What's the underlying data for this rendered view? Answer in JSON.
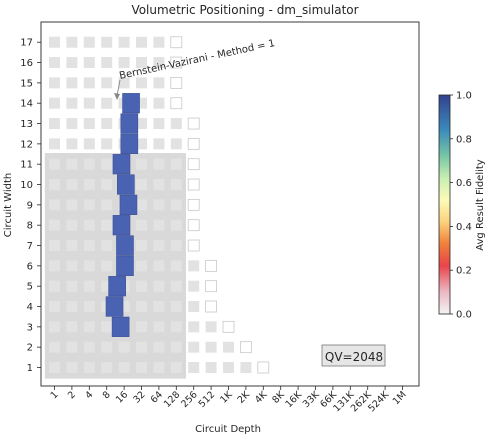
{
  "chart_data": {
    "type": "heatmap",
    "title": "Volumetric Positioning - dm_simulator",
    "xlabel": "Circuit Depth",
    "ylabel": "Circuit Width",
    "x_tick_labels": [
      "1",
      "2",
      "4",
      "8",
      "16",
      "32",
      "64",
      "128",
      "256",
      "512",
      "1K",
      "2K",
      "4K",
      "8K",
      "16K",
      "33K",
      "66K",
      "131K",
      "262K",
      "524K",
      "1M"
    ],
    "y_tick_labels": [
      "1",
      "2",
      "3",
      "4",
      "5",
      "6",
      "7",
      "8",
      "9",
      "10",
      "11",
      "12",
      "13",
      "14",
      "15",
      "16",
      "17"
    ],
    "colorbar": {
      "label": "Avg Result Fidelity",
      "ticks": [
        "0.0",
        "0.2",
        "0.4",
        "0.6",
        "0.8",
        "1.0"
      ],
      "range": [
        0,
        1
      ]
    },
    "annotation": "Bernstein-Vazirani - Method = 1",
    "qv_label": "QV=2048",
    "qv_region": {
      "max_width": 11,
      "max_depth_index": 7
    },
    "grid_cells": [
      [
        1,
        0,
        1
      ],
      [
        1,
        1,
        1
      ],
      [
        1,
        2,
        1
      ],
      [
        1,
        3,
        1
      ],
      [
        1,
        4,
        1
      ],
      [
        1,
        5,
        1
      ],
      [
        1,
        6,
        1
      ],
      [
        1,
        7,
        1
      ],
      [
        1,
        8,
        1
      ],
      [
        1,
        9,
        1
      ],
      [
        1,
        10,
        1
      ],
      [
        1,
        11,
        1
      ],
      [
        1,
        12,
        0
      ],
      [
        2,
        0,
        1
      ],
      [
        2,
        1,
        1
      ],
      [
        2,
        2,
        1
      ],
      [
        2,
        3,
        1
      ],
      [
        2,
        4,
        1
      ],
      [
        2,
        5,
        1
      ],
      [
        2,
        6,
        1
      ],
      [
        2,
        7,
        1
      ],
      [
        2,
        8,
        1
      ],
      [
        2,
        9,
        1
      ],
      [
        2,
        10,
        1
      ],
      [
        2,
        11,
        0
      ],
      [
        3,
        0,
        1
      ],
      [
        3,
        1,
        1
      ],
      [
        3,
        2,
        1
      ],
      [
        3,
        3,
        1
      ],
      [
        3,
        4,
        1
      ],
      [
        3,
        5,
        1
      ],
      [
        3,
        6,
        1
      ],
      [
        3,
        7,
        1
      ],
      [
        3,
        8,
        1
      ],
      [
        3,
        9,
        1
      ],
      [
        3,
        10,
        0
      ],
      [
        4,
        0,
        1
      ],
      [
        4,
        1,
        1
      ],
      [
        4,
        2,
        1
      ],
      [
        4,
        3,
        1
      ],
      [
        4,
        4,
        1
      ],
      [
        4,
        5,
        1
      ],
      [
        4,
        6,
        1
      ],
      [
        4,
        7,
        1
      ],
      [
        4,
        8,
        1
      ],
      [
        4,
        9,
        0
      ],
      [
        5,
        0,
        1
      ],
      [
        5,
        1,
        1
      ],
      [
        5,
        2,
        1
      ],
      [
        5,
        3,
        1
      ],
      [
        5,
        4,
        1
      ],
      [
        5,
        5,
        1
      ],
      [
        5,
        6,
        1
      ],
      [
        5,
        7,
        1
      ],
      [
        5,
        8,
        1
      ],
      [
        5,
        9,
        0
      ],
      [
        6,
        0,
        1
      ],
      [
        6,
        1,
        1
      ],
      [
        6,
        2,
        1
      ],
      [
        6,
        3,
        1
      ],
      [
        6,
        4,
        1
      ],
      [
        6,
        5,
        1
      ],
      [
        6,
        6,
        1
      ],
      [
        6,
        7,
        1
      ],
      [
        6,
        8,
        1
      ],
      [
        6,
        9,
        0
      ],
      [
        7,
        0,
        1
      ],
      [
        7,
        1,
        1
      ],
      [
        7,
        2,
        1
      ],
      [
        7,
        3,
        1
      ],
      [
        7,
        4,
        1
      ],
      [
        7,
        5,
        1
      ],
      [
        7,
        6,
        1
      ],
      [
        7,
        7,
        1
      ],
      [
        7,
        8,
        0
      ],
      [
        8,
        0,
        1
      ],
      [
        8,
        1,
        1
      ],
      [
        8,
        2,
        1
      ],
      [
        8,
        3,
        1
      ],
      [
        8,
        4,
        1
      ],
      [
        8,
        5,
        1
      ],
      [
        8,
        6,
        1
      ],
      [
        8,
        7,
        1
      ],
      [
        8,
        8,
        0
      ],
      [
        9,
        0,
        1
      ],
      [
        9,
        1,
        1
      ],
      [
        9,
        2,
        1
      ],
      [
        9,
        3,
        1
      ],
      [
        9,
        4,
        1
      ],
      [
        9,
        5,
        1
      ],
      [
        9,
        6,
        1
      ],
      [
        9,
        7,
        1
      ],
      [
        9,
        8,
        0
      ],
      [
        10,
        0,
        1
      ],
      [
        10,
        1,
        1
      ],
      [
        10,
        2,
        1
      ],
      [
        10,
        3,
        1
      ],
      [
        10,
        4,
        1
      ],
      [
        10,
        5,
        1
      ],
      [
        10,
        6,
        1
      ],
      [
        10,
        7,
        1
      ],
      [
        10,
        8,
        0
      ],
      [
        11,
        0,
        1
      ],
      [
        11,
        1,
        1
      ],
      [
        11,
        2,
        1
      ],
      [
        11,
        3,
        1
      ],
      [
        11,
        4,
        1
      ],
      [
        11,
        5,
        1
      ],
      [
        11,
        6,
        1
      ],
      [
        11,
        7,
        1
      ],
      [
        11,
        8,
        0
      ],
      [
        12,
        0,
        1
      ],
      [
        12,
        1,
        1
      ],
      [
        12,
        2,
        1
      ],
      [
        12,
        3,
        1
      ],
      [
        12,
        4,
        1
      ],
      [
        12,
        5,
        1
      ],
      [
        12,
        6,
        1
      ],
      [
        12,
        7,
        1
      ],
      [
        12,
        8,
        0
      ],
      [
        13,
        0,
        1
      ],
      [
        13,
        1,
        1
      ],
      [
        13,
        2,
        1
      ],
      [
        13,
        3,
        1
      ],
      [
        13,
        4,
        1
      ],
      [
        13,
        5,
        1
      ],
      [
        13,
        6,
        1
      ],
      [
        13,
        7,
        1
      ],
      [
        13,
        8,
        0
      ],
      [
        14,
        0,
        1
      ],
      [
        14,
        1,
        1
      ],
      [
        14,
        2,
        1
      ],
      [
        14,
        3,
        1
      ],
      [
        14,
        4,
        1
      ],
      [
        14,
        5,
        1
      ],
      [
        14,
        6,
        1
      ],
      [
        14,
        7,
        0
      ],
      [
        15,
        0,
        1
      ],
      [
        15,
        1,
        1
      ],
      [
        15,
        2,
        1
      ],
      [
        15,
        3,
        1
      ],
      [
        15,
        4,
        1
      ],
      [
        15,
        5,
        1
      ],
      [
        15,
        6,
        1
      ],
      [
        15,
        7,
        0
      ],
      [
        16,
        0,
        1
      ],
      [
        16,
        1,
        1
      ],
      [
        16,
        2,
        1
      ],
      [
        16,
        3,
        1
      ],
      [
        16,
        4,
        1
      ],
      [
        16,
        5,
        1
      ],
      [
        16,
        6,
        1
      ],
      [
        16,
        7,
        0
      ],
      [
        17,
        0,
        1
      ],
      [
        17,
        1,
        1
      ],
      [
        17,
        2,
        1
      ],
      [
        17,
        3,
        1
      ],
      [
        17,
        4,
        1
      ],
      [
        17,
        5,
        1
      ],
      [
        17,
        6,
        1
      ],
      [
        17,
        7,
        0
      ]
    ],
    "result_points": [
      {
        "width": 3,
        "depth_index": 3.8,
        "fidelity": 1.0
      },
      {
        "width": 4,
        "depth_index": 3.45,
        "fidelity": 1.0
      },
      {
        "width": 5,
        "depth_index": 3.6,
        "fidelity": 1.0
      },
      {
        "width": 6,
        "depth_index": 4.05,
        "fidelity": 1.0
      },
      {
        "width": 7,
        "depth_index": 4.05,
        "fidelity": 1.0
      },
      {
        "width": 8,
        "depth_index": 3.85,
        "fidelity": 1.0
      },
      {
        "width": 9,
        "depth_index": 4.25,
        "fidelity": 1.0
      },
      {
        "width": 10,
        "depth_index": 4.1,
        "fidelity": 1.0
      },
      {
        "width": 11,
        "depth_index": 3.85,
        "fidelity": 1.0
      },
      {
        "width": 12,
        "depth_index": 4.3,
        "fidelity": 1.0
      },
      {
        "width": 13,
        "depth_index": 4.3,
        "fidelity": 1.0
      },
      {
        "width": 14,
        "depth_index": 4.4,
        "fidelity": 1.0
      }
    ]
  },
  "colors": {
    "grid_fill": "#e2e2e2",
    "qv_region": "#d9d9d9",
    "result": "#4a62b2",
    "result_edge": "#3b4f95",
    "axis": "#262626"
  }
}
